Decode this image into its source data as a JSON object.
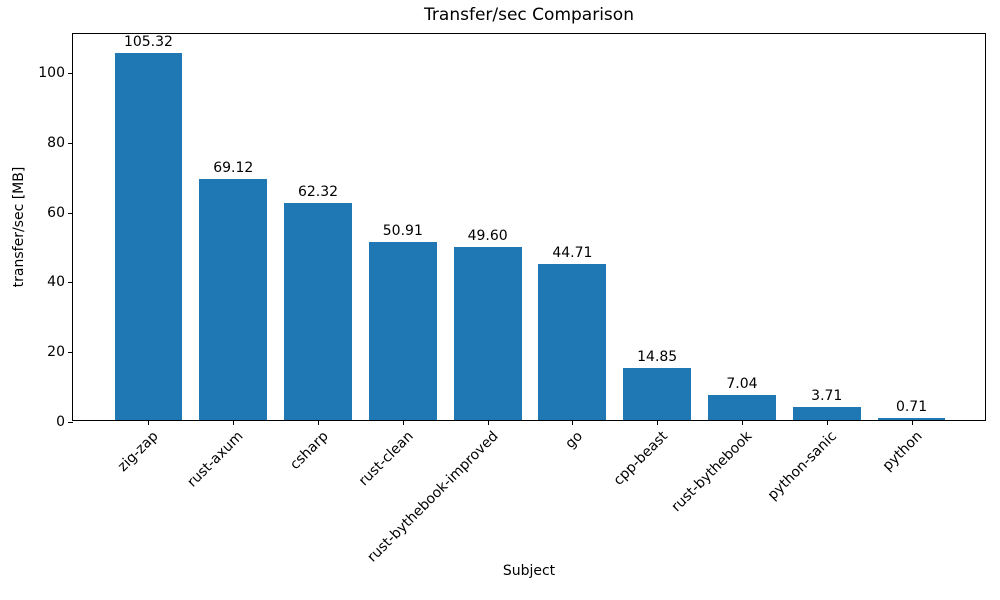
{
  "chart_data": {
    "type": "bar",
    "title": "Transfer/sec Comparison",
    "xlabel": "Subject",
    "ylabel": "transfer/sec [MB]",
    "categories": [
      "zig-zap",
      "rust-axum",
      "csharp",
      "rust-clean",
      "rust-bythebook-improved",
      "go",
      "cpp-beast",
      "rust-bythebook",
      "python-sanic",
      "python"
    ],
    "values": [
      105.32,
      69.12,
      62.32,
      50.91,
      49.6,
      44.71,
      14.85,
      7.04,
      3.71,
      0.71
    ],
    "value_labels": [
      "105.32",
      "69.12",
      "62.32",
      "50.91",
      "49.60",
      "44.71",
      "14.85",
      "7.04",
      "3.71",
      "0.71"
    ],
    "yticks": [
      0,
      20,
      40,
      60,
      80,
      100
    ],
    "ylim": [
      0,
      111.2
    ],
    "xtick_rotation_deg": 45,
    "grid": false,
    "legend_position": "none",
    "bar_color": "#1f77b4",
    "axis_color": "#000000",
    "background_color": "#ffffff"
  }
}
